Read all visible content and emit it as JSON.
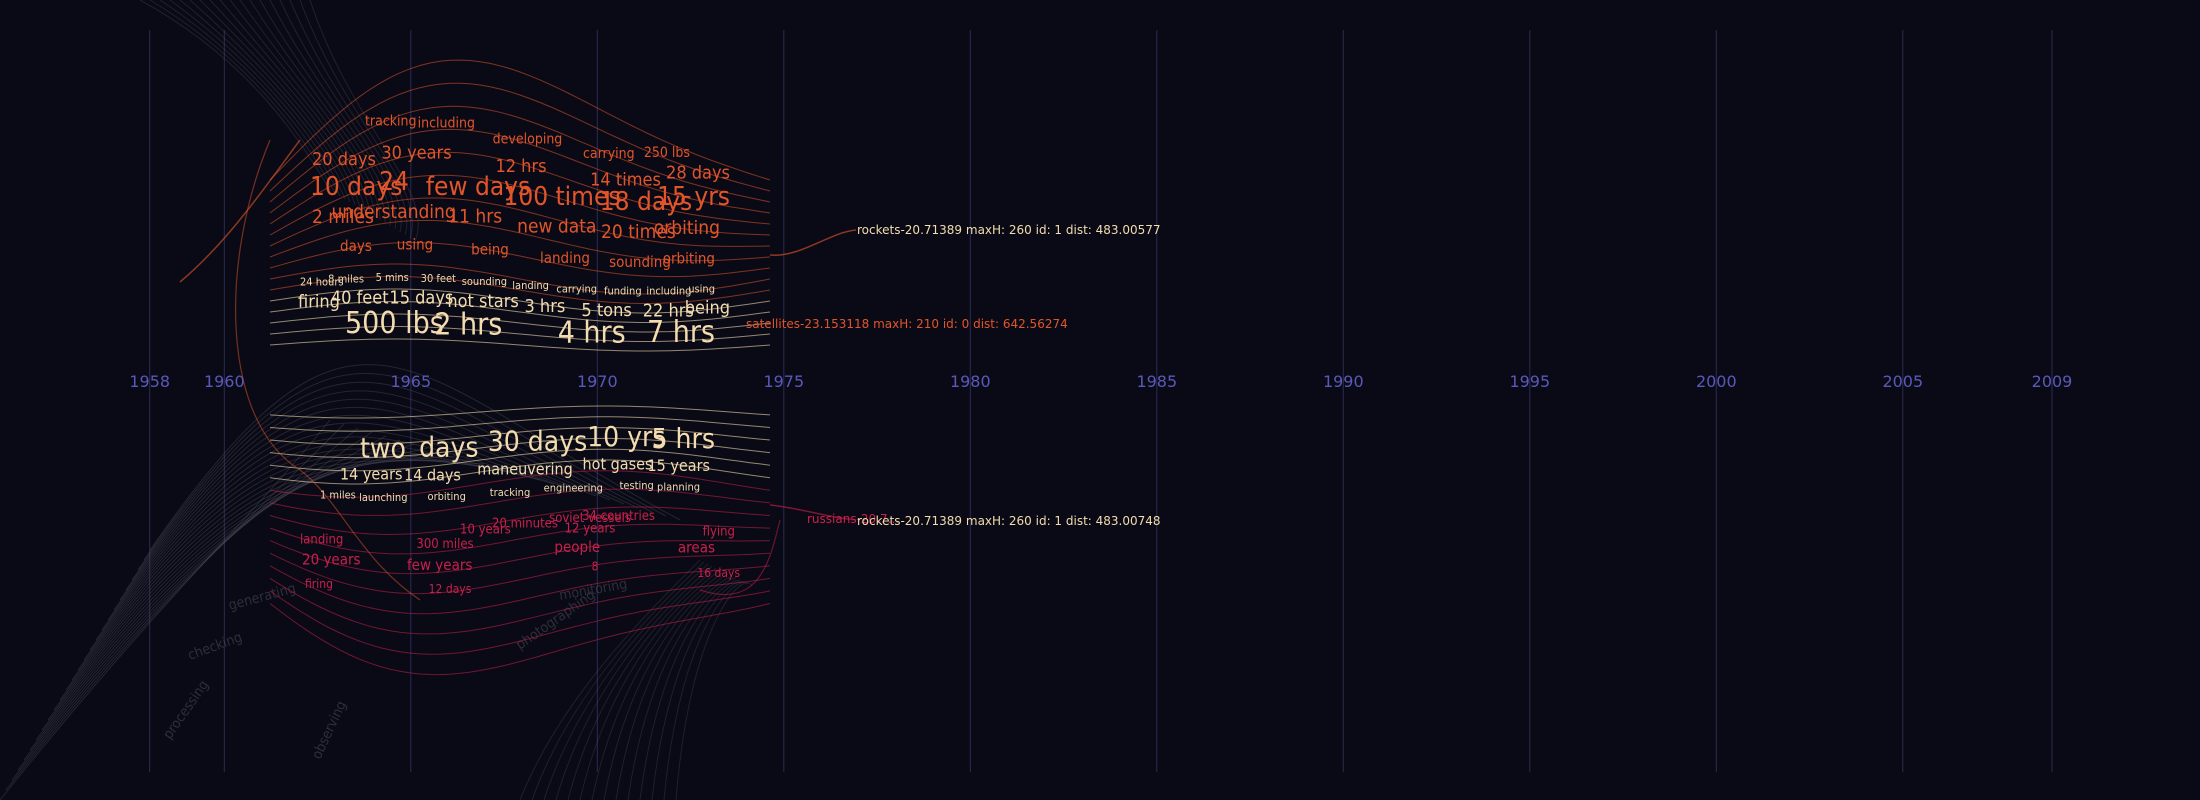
{
  "colors": {
    "background": "#0a0a16",
    "grid": "#2a2a52",
    "year": "#5a58b8",
    "cream": "#f3dcae",
    "orange": "#e2552a",
    "red": "#c8204a",
    "ghost": "#5a5a66"
  },
  "timeline": {
    "years": [
      "1958",
      "1960",
      "1965",
      "1970",
      "1975",
      "1980",
      "1985",
      "1990",
      "1995",
      "2000",
      "2005",
      "2009"
    ],
    "year_values": [
      1958,
      1960,
      1965,
      1970,
      1975,
      1980,
      1985,
      1990,
      1995,
      2000,
      2005,
      2009
    ],
    "range": [
      1956,
      2011
    ]
  },
  "annotations": [
    {
      "id": "rockets-top",
      "text": "rockets-20.71389 maxH: 260 id: 1 dist: 483.00577",
      "color": "cream"
    },
    {
      "id": "satellites",
      "text": "satellites-23.153118 maxH: 210 id: 0 dist: 642.56274",
      "color": "orange"
    },
    {
      "id": "rockets-bottom",
      "text": "rockets-20.71389 maxH: 260 id: 1 dist: 483.00748",
      "color": "cream"
    },
    {
      "id": "russians",
      "text": "russians-20.7...",
      "color": "red"
    }
  ],
  "word_rows": [
    {
      "words": [
        "500 lbs",
        "2 hrs",
        "4 hrs",
        "7 hrs"
      ],
      "color": "cream"
    },
    {
      "words": [
        "firing",
        "40 feet",
        "15 days",
        "hot stars",
        "3 hrs",
        "5 tons",
        "22 hrs",
        "being"
      ],
      "color": "cream"
    },
    {
      "words": [
        "24 hours",
        "8 miles",
        "5 mins",
        "30 feet",
        "sounding",
        "landing",
        "carrying",
        "funding",
        "including",
        "using"
      ],
      "color": "cream"
    },
    {
      "words": [
        "days",
        "using",
        "being",
        "landing",
        "sounding",
        "orbiting"
      ],
      "color": "orange"
    },
    {
      "words": [
        "2 miles",
        "understanding",
        "11 hrs",
        "new data",
        "20 times",
        "orbiting"
      ],
      "color": "orange"
    },
    {
      "words": [
        "10 days",
        "24",
        "few days",
        "100 times",
        "18 days",
        "15 yrs"
      ],
      "color": "orange"
    },
    {
      "words": [
        "20 days",
        "30 years",
        "12 hrs",
        "14 times",
        "28 days"
      ],
      "color": "orange"
    },
    {
      "words": [
        "tracking",
        "including",
        "developing",
        "carrying",
        "250 lbs"
      ],
      "color": "orange"
    },
    {
      "words": [
        "two",
        "days",
        "30 days",
        "10 yrs",
        "5 hrs"
      ],
      "color": "cream"
    },
    {
      "words": [
        "14 years",
        "14 days",
        "maneuvering",
        "hot gases",
        "15 years"
      ],
      "color": "cream"
    },
    {
      "words": [
        "1 miles",
        "launching",
        "orbiting",
        "tracking",
        "engineering",
        "testing",
        "planning"
      ],
      "color": "cream"
    },
    {
      "words": [
        "10 years",
        "20 minutes",
        "soviet vessels",
        "34 countries"
      ],
      "color": "red"
    },
    {
      "words": [
        "landing",
        "300 miles",
        "12 years",
        "flying"
      ],
      "color": "red"
    },
    {
      "words": [
        "20 years",
        "few years",
        "people",
        "areas"
      ],
      "color": "red"
    },
    {
      "words": [
        "firing",
        "12 days",
        "8",
        "16 days"
      ],
      "color": "red"
    }
  ],
  "ghost_words": [
    "checking",
    "generating",
    "photographing",
    "processing",
    "observing",
    "monitoring"
  ]
}
